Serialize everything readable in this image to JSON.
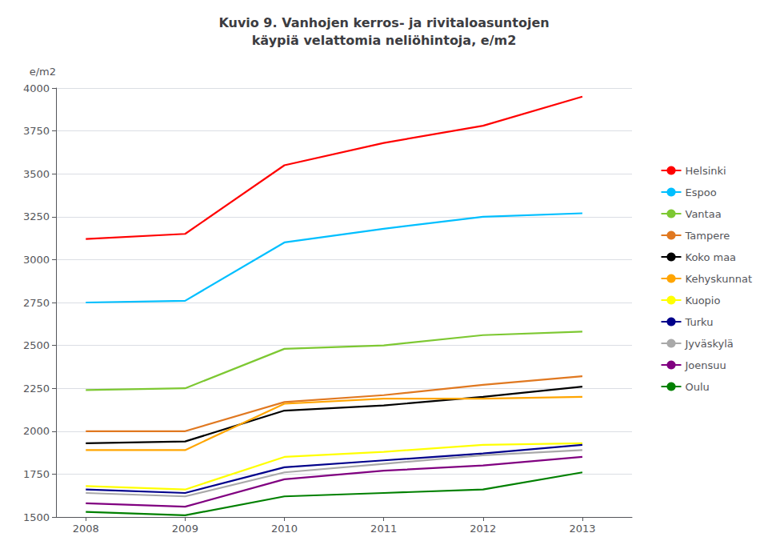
{
  "chart_data": {
    "type": "line",
    "title": "Kuvio 9. Vanhojen kerros- ja rivitaloasuntojen\nkäypiä velattomia neliöhintoja, e/m2",
    "ylabel": "e/m2",
    "x": [
      2008,
      2009,
      2010,
      2011,
      2012,
      2013
    ],
    "xlim": [
      2007.7,
      2013.5
    ],
    "xticks": [
      2008,
      2009,
      2010,
      2011,
      2012,
      2013
    ],
    "ylim": [
      1500,
      4000
    ],
    "yticks": [
      1500,
      1750,
      2000,
      2250,
      2500,
      2750,
      3000,
      3250,
      3500,
      3750,
      4000
    ],
    "grid": true,
    "legend": "right",
    "series": [
      {
        "name": "Helsinki",
        "color": "#FF0000",
        "values": [
          3120,
          3150,
          3550,
          3680,
          3780,
          3950
        ]
      },
      {
        "name": "Espoo",
        "color": "#00BFFF",
        "values": [
          2750,
          2760,
          3100,
          3180,
          3250,
          3270
        ]
      },
      {
        "name": "Vantaa",
        "color": "#7DC832",
        "values": [
          2240,
          2250,
          2480,
          2500,
          2560,
          2580
        ]
      },
      {
        "name": "Tampere",
        "color": "#E07820",
        "values": [
          2000,
          2000,
          2170,
          2210,
          2270,
          2320
        ]
      },
      {
        "name": "Koko maa",
        "color": "#000000",
        "values": [
          1930,
          1940,
          2120,
          2150,
          2200,
          2260
        ]
      },
      {
        "name": "Kehyskunnat",
        "color": "#FFA500",
        "values": [
          1890,
          1890,
          2160,
          2190,
          2190,
          2200
        ]
      },
      {
        "name": "Kuopio",
        "color": "#FFFF00",
        "values": [
          1680,
          1660,
          1850,
          1880,
          1920,
          1930
        ]
      },
      {
        "name": "Turku",
        "color": "#00008B",
        "values": [
          1660,
          1640,
          1790,
          1830,
          1870,
          1920
        ]
      },
      {
        "name": "Jyväskylä",
        "color": "#A9A9A9",
        "values": [
          1640,
          1620,
          1760,
          1810,
          1860,
          1890
        ]
      },
      {
        "name": "Joensuu",
        "color": "#800080",
        "values": [
          1580,
          1560,
          1720,
          1770,
          1800,
          1850
        ]
      },
      {
        "name": "Oulu",
        "color": "#008000",
        "values": [
          1530,
          1510,
          1620,
          1640,
          1660,
          1760
        ]
      }
    ]
  }
}
